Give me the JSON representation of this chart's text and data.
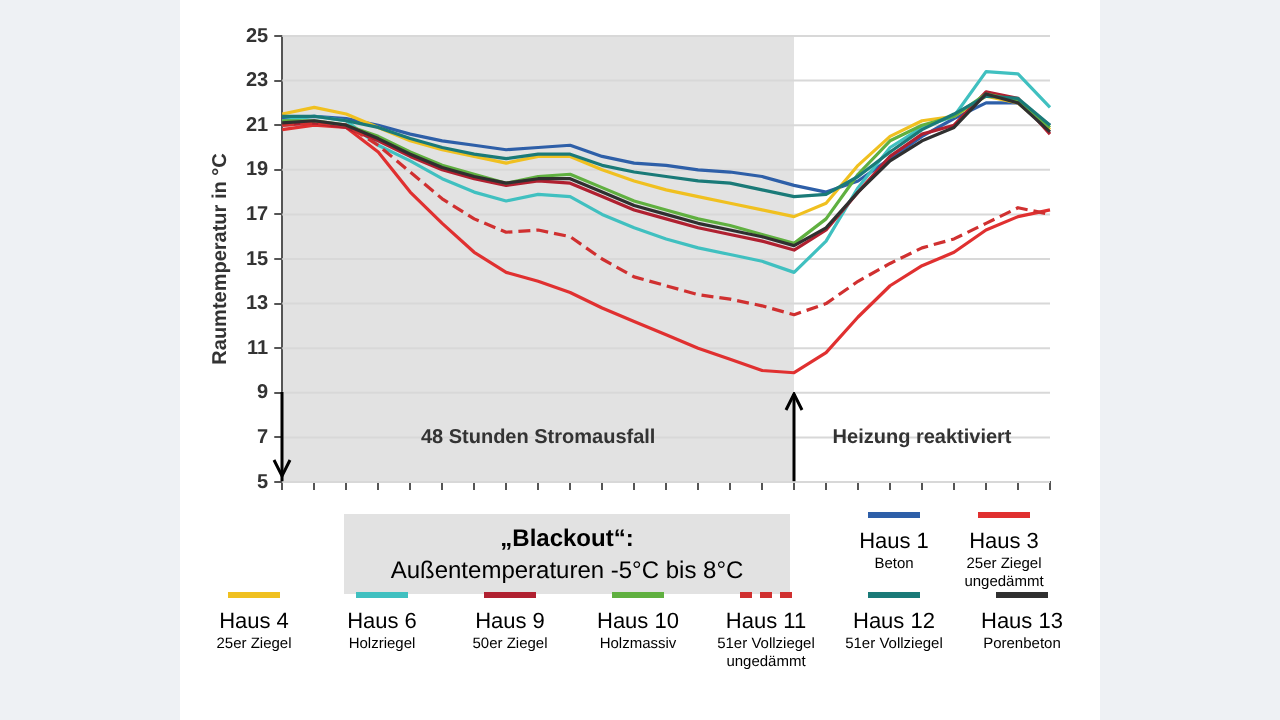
{
  "chart_data": {
    "type": "line",
    "ylabel": "Raumtemperatur in °C",
    "categories": [
      null,
      null,
      null,
      null,
      null,
      null,
      null,
      null,
      null,
      null,
      null,
      null,
      null,
      null,
      null,
      null,
      null,
      null,
      null,
      null,
      null,
      null,
      null,
      null,
      null
    ],
    "ylim": [
      5,
      25
    ],
    "yticks": [
      5,
      7,
      9,
      11,
      13,
      15,
      17,
      19,
      21,
      23,
      25
    ],
    "tick_labels": "y",
    "grid": "y",
    "marker": "none",
    "legend": "bottom",
    "annotations": [
      "48 Stunden Stromausfall",
      "Heizung reaktiviert",
      "„Blackout“:\nAußentemperaturen -5°C bis 8°C"
    ],
    "series": [
      {
        "name": "Haus 1\nBeton",
        "color": "#2e5fa8",
        "values": [
          21.3,
          21.4,
          21.3,
          21.0,
          20.6,
          20.3,
          20.1,
          19.9,
          20.0,
          20.1,
          19.6,
          19.3,
          19.2,
          19.0,
          18.9,
          18.7,
          18.3,
          18.0,
          18.5,
          19.5,
          20.5,
          21.3,
          22.0,
          22.0,
          21.0
        ]
      },
      {
        "name": "Haus 3\n25er Ziegel\nungedämmt",
        "color": "#e03030",
        "values": [
          20.8,
          21.0,
          20.9,
          19.8,
          18.0,
          16.6,
          15.3,
          14.4,
          14.0,
          13.5,
          12.8,
          12.2,
          11.6,
          11.0,
          10.5,
          10.0,
          9.9,
          10.8,
          12.4,
          13.8,
          14.7,
          15.3,
          16.3,
          16.9,
          17.2
        ]
      },
      {
        "name": "Haus 4\n25er Ziegel",
        "color": "#f0c020",
        "values": [
          21.5,
          21.8,
          21.5,
          20.9,
          20.3,
          19.9,
          19.6,
          19.3,
          19.6,
          19.6,
          19.0,
          18.5,
          18.1,
          17.8,
          17.5,
          17.2,
          16.9,
          17.5,
          19.2,
          20.5,
          21.2,
          21.4,
          22.3,
          22.0,
          20.8
        ]
      },
      {
        "name": "Haus 6\nHolzriegel",
        "color": "#40c0c0",
        "values": [
          21.2,
          21.4,
          21.2,
          20.1,
          19.4,
          18.6,
          18.0,
          17.6,
          17.9,
          17.8,
          17.0,
          16.4,
          15.9,
          15.5,
          15.2,
          14.9,
          14.4,
          15.8,
          18.2,
          20.0,
          20.9,
          21.4,
          23.4,
          23.3,
          21.8
        ]
      },
      {
        "name": "Haus 9\n50er Ziegel",
        "color": "#b02030",
        "values": [
          21.0,
          21.1,
          20.9,
          20.3,
          19.6,
          19.0,
          18.6,
          18.3,
          18.5,
          18.4,
          17.8,
          17.2,
          16.8,
          16.4,
          16.1,
          15.8,
          15.4,
          16.3,
          18.0,
          19.6,
          20.6,
          21.0,
          22.5,
          22.2,
          20.6
        ]
      },
      {
        "name": "Haus  10\nHolzmassiv",
        "color": "#60b040",
        "values": [
          21.2,
          21.2,
          21.0,
          20.5,
          19.8,
          19.2,
          18.8,
          18.4,
          18.7,
          18.8,
          18.2,
          17.6,
          17.2,
          16.8,
          16.5,
          16.1,
          15.7,
          16.8,
          18.8,
          20.3,
          21.0,
          21.4,
          22.4,
          22.1,
          20.9
        ]
      },
      {
        "name": "Haus 11\n51er Vollziegel\nungedämmt",
        "color": "#d03030",
        "line_style": "dashed",
        "values": [
          21.0,
          21.1,
          21.0,
          20.1,
          18.9,
          17.7,
          16.8,
          16.2,
          16.3,
          16.0,
          15.0,
          14.2,
          13.8,
          13.4,
          13.2,
          12.9,
          12.5,
          13.0,
          14.0,
          14.8,
          15.5,
          15.9,
          16.6,
          17.3,
          17.0
        ]
      },
      {
        "name": "Haus 12\n51er  Vollziegel",
        "color": "#1a7a78",
        "values": [
          21.4,
          21.4,
          21.2,
          20.9,
          20.4,
          20.0,
          19.7,
          19.5,
          19.7,
          19.7,
          19.2,
          18.9,
          18.7,
          18.5,
          18.4,
          18.1,
          17.8,
          17.9,
          18.7,
          19.8,
          20.8,
          21.5,
          22.3,
          22.2,
          21.0
        ]
      },
      {
        "name": "Haus 13\nPorenbeton",
        "color": "#303030",
        "values": [
          21.1,
          21.2,
          21.0,
          20.4,
          19.7,
          19.1,
          18.7,
          18.4,
          18.6,
          18.6,
          18.0,
          17.4,
          17.0,
          16.6,
          16.3,
          16.0,
          15.6,
          16.4,
          18.0,
          19.4,
          20.3,
          20.9,
          22.4,
          22.0,
          20.7
        ]
      }
    ]
  }
}
